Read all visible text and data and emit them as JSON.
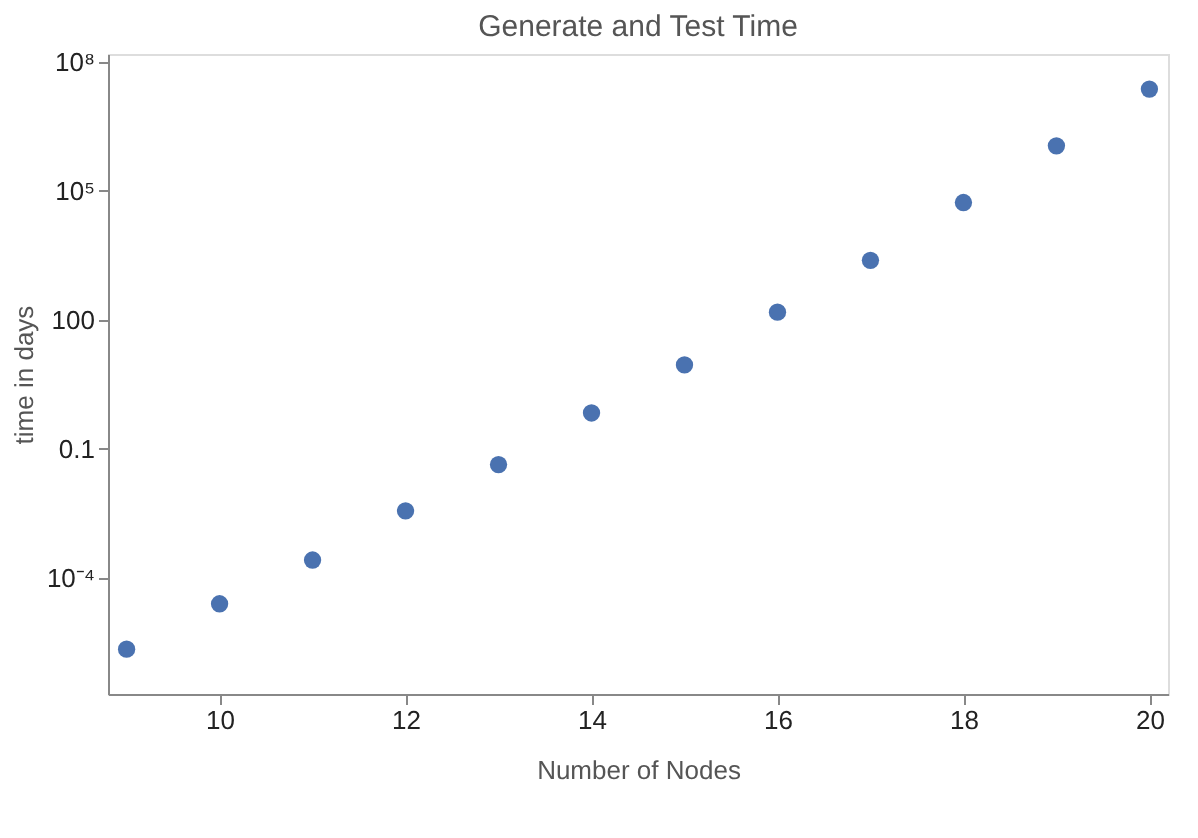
{
  "chart_data": {
    "type": "scatter",
    "title": "Generate and Test Time",
    "xlabel": "Number of Nodes",
    "ylabel": "time in days",
    "x": [
      9,
      10,
      11,
      12,
      13,
      14,
      15,
      16,
      17,
      18,
      19,
      20
    ],
    "series": [
      {
        "color": "#4a72b0",
        "values": [
          2.2e-06,
          2.5e-05,
          0.00026,
          0.0036,
          0.043,
          0.68,
          8.9,
          150,
          2400,
          53000,
          1100000,
          23000000
        ]
      }
    ],
    "log": "y",
    "xlim": [
      8.8,
      20.2
    ],
    "xticks": [
      10,
      12,
      14,
      16,
      18,
      20
    ],
    "ylim": [
      2e-07,
      150000000.0
    ],
    "yticks": [
      {
        "value": 0.0001,
        "label": "10⁻⁴"
      },
      0.1,
      100,
      {
        "value": 100000,
        "label": "10⁵"
      },
      {
        "value": 100000000,
        "label": "10⁸"
      }
    ],
    "grid": false,
    "marker": "circle"
  }
}
